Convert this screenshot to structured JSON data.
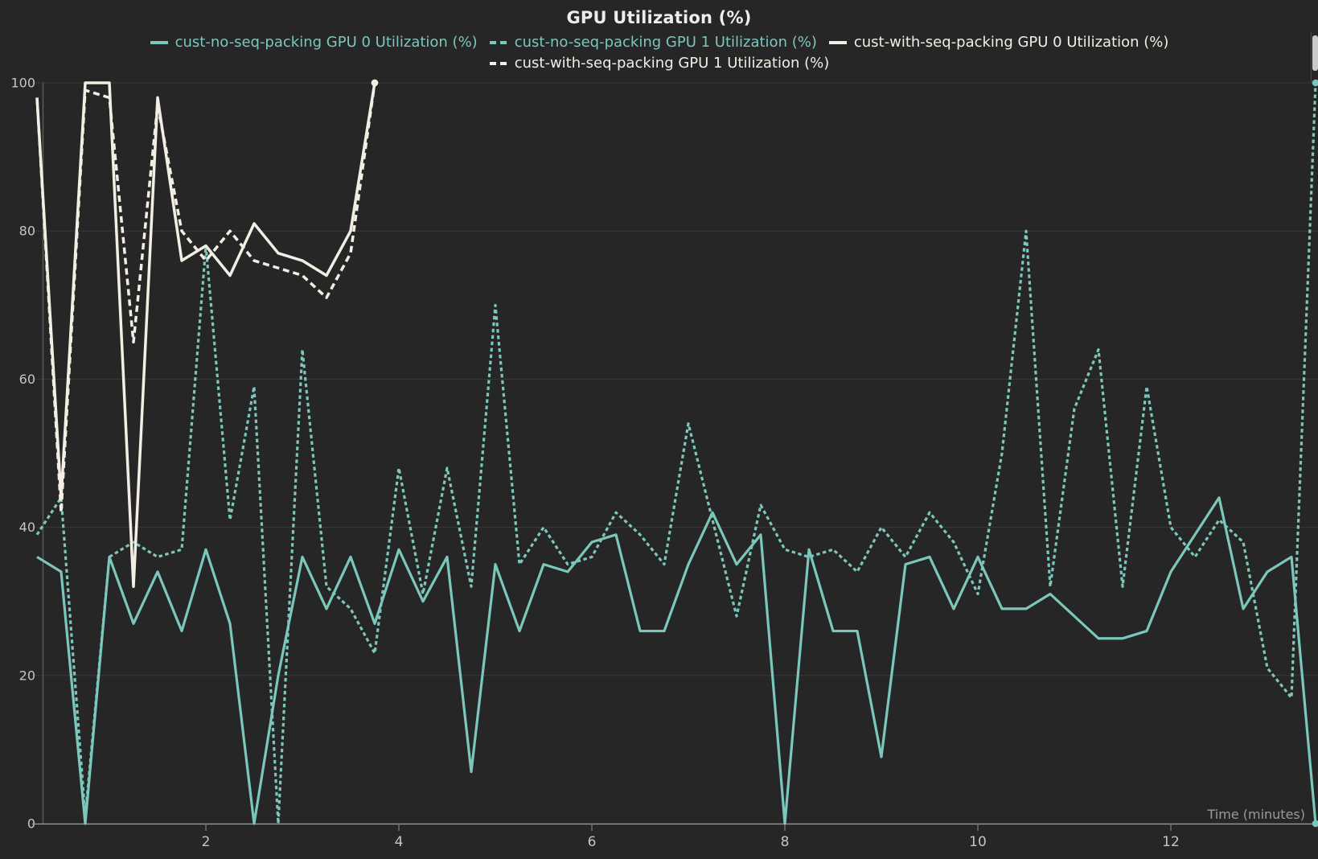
{
  "title": "GPU Utilization (%)",
  "colors": {
    "background": "#262626",
    "teal": "#7cc7bb",
    "white": "#f2eee3",
    "grid": "#3a3a3c",
    "x_axis_line": "#9c9c9c",
    "y_axis_line": "#5f5f5f",
    "tick_label": "#c6c6c6",
    "title_color": "#ededed",
    "time_label_color": "#97999e",
    "scrollbar_thumb": "#c9c9c9"
  },
  "legend": [
    {
      "label": "cust-no-seq-packing GPU 0 Utilization (%)",
      "color_key": "teal",
      "dashed": false,
      "row": 1
    },
    {
      "label": "cust-no-seq-packing GPU 1 Utilization (%)",
      "color_key": "teal",
      "dashed": true,
      "row": 1
    },
    {
      "label": "cust-with-seq-packing GPU 0 Utilization (%)",
      "color_key": "white",
      "dashed": false,
      "row": 1
    },
    {
      "label": "cust-with-seq-packing GPU 1 Utilization (%)",
      "color_key": "white",
      "dashed": true,
      "row": 2
    }
  ],
  "chart_data": {
    "type": "line",
    "title": "GPU Utilization (%)",
    "xlabel": "Time (minutes)",
    "ylabel": "",
    "ylim": [
      0,
      100
    ],
    "yticks": [
      0,
      20,
      40,
      60,
      80,
      100
    ],
    "xticks": [
      2,
      4,
      6,
      8,
      10,
      12
    ],
    "grid": "horizontal",
    "legend_position": "top",
    "x": [
      0.25,
      0.5,
      0.75,
      1.0,
      1.25,
      1.5,
      1.75,
      2.0,
      2.25,
      2.5,
      2.75,
      3.0,
      3.25,
      3.5,
      3.75,
      4.0,
      4.25,
      4.5,
      4.75,
      5.0,
      5.25,
      5.5,
      5.75,
      6.0,
      6.25,
      6.5,
      6.75,
      7.0,
      7.25,
      7.5,
      7.75,
      8.0,
      8.25,
      8.5,
      8.75,
      9.0,
      9.25,
      9.5,
      9.75,
      10.0,
      10.25,
      10.5,
      10.75,
      11.0,
      11.25,
      11.5,
      11.75,
      12.0,
      12.25,
      12.5,
      12.75,
      13.0,
      13.25,
      13.5
    ],
    "series": [
      {
        "name": "cust-no-seq-packing GPU 0 Utilization (%)",
        "color_key": "teal",
        "dashed": false,
        "end_marker": true,
        "values": [
          36,
          34,
          0,
          36,
          27,
          34,
          26,
          37,
          27,
          0,
          20,
          36,
          29,
          36,
          27,
          37,
          30,
          36,
          7,
          35,
          26,
          35,
          34,
          38,
          39,
          26,
          26,
          35,
          42,
          35,
          39,
          0,
          37,
          26,
          26,
          9,
          35,
          36,
          29,
          36,
          29,
          29,
          31,
          28,
          25,
          25,
          26,
          34,
          39,
          44,
          29,
          34,
          36,
          0
        ]
      },
      {
        "name": "cust-no-seq-packing GPU 1 Utilization (%)",
        "color_key": "teal",
        "dashed": true,
        "end_marker": true,
        "values": [
          39,
          44,
          1,
          36,
          38,
          36,
          37,
          78,
          41,
          59,
          0,
          64,
          32,
          29,
          23,
          48,
          31,
          48,
          32,
          70,
          35,
          40,
          35,
          36,
          42,
          39,
          35,
          54,
          41,
          28,
          43,
          37,
          36,
          37,
          34,
          40,
          36,
          42,
          38,
          31,
          50,
          80,
          32,
          56,
          64,
          32,
          59,
          40,
          36,
          41,
          38,
          21,
          17,
          100
        ]
      },
      {
        "name": "cust-with-seq-packing GPU 0 Utilization (%)",
        "color_key": "white",
        "dashed": false,
        "end_marker": true,
        "values": [
          98,
          44,
          100,
          100,
          32,
          98,
          76,
          78,
          74,
          81,
          77,
          76,
          74,
          80,
          100
        ]
      },
      {
        "name": "cust-with-seq-packing GPU 1 Utilization (%)",
        "color_key": "white",
        "dashed": true,
        "end_marker": true,
        "values": [
          98,
          42,
          99,
          98,
          65,
          97,
          80,
          76,
          80,
          76,
          75,
          74,
          71,
          77,
          100
        ]
      }
    ]
  }
}
